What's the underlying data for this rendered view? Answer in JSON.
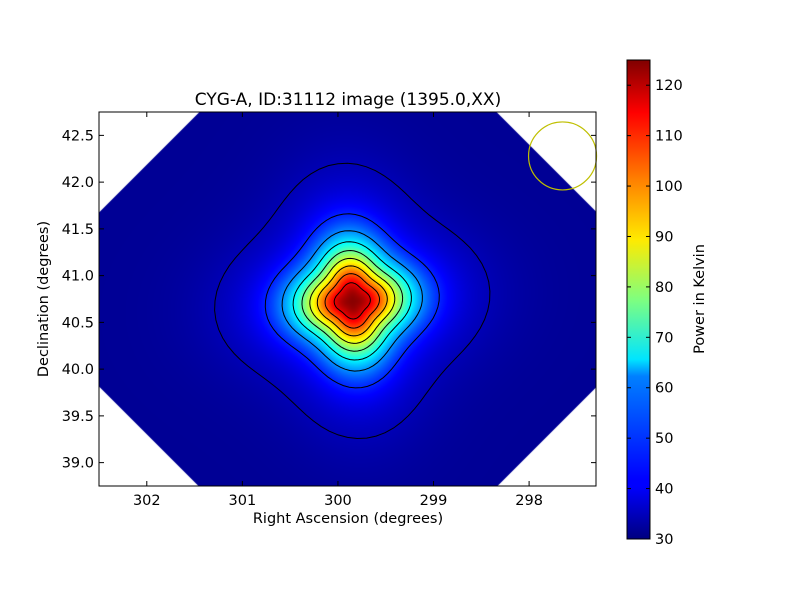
{
  "chart_data": {
    "type": "heatmap",
    "title": "CYG-A, ID:31112 image (1395.0,XX)",
    "xlabel": "Right Ascension (degrees)",
    "ylabel": "Declination (degrees)",
    "xlim": [
      302.5,
      297.3
    ],
    "ylim": [
      38.75,
      42.75
    ],
    "x_ticks": [
      302,
      301,
      300,
      299,
      298
    ],
    "x_tick_labels": [
      "302",
      "301",
      "300",
      "299",
      "298"
    ],
    "y_ticks": [
      39.0,
      39.5,
      40.0,
      40.5,
      41.0,
      41.5,
      42.0,
      42.5
    ],
    "y_tick_labels": [
      "39.0",
      "39.5",
      "40.0",
      "40.5",
      "41.0",
      "41.5",
      "42.0",
      "42.5"
    ],
    "colorbar": {
      "label": "Power in Kelvin",
      "range": [
        30,
        125
      ],
      "colormap": "jet",
      "ticks": [
        30,
        40,
        50,
        60,
        70,
        80,
        90,
        100,
        110,
        120
      ],
      "tick_labels": [
        "30",
        "40",
        "50",
        "60",
        "70",
        "80",
        "90",
        "100",
        "110",
        "120"
      ]
    },
    "peak": {
      "ra": 299.85,
      "dec": 40.73,
      "value": 124
    },
    "background_value": 32,
    "contour_levels": [
      35,
      45,
      55,
      65,
      75,
      85,
      95,
      105,
      115
    ],
    "beam": {
      "ra": 297.65,
      "dec": 42.28,
      "color": "#bfbf00"
    }
  }
}
